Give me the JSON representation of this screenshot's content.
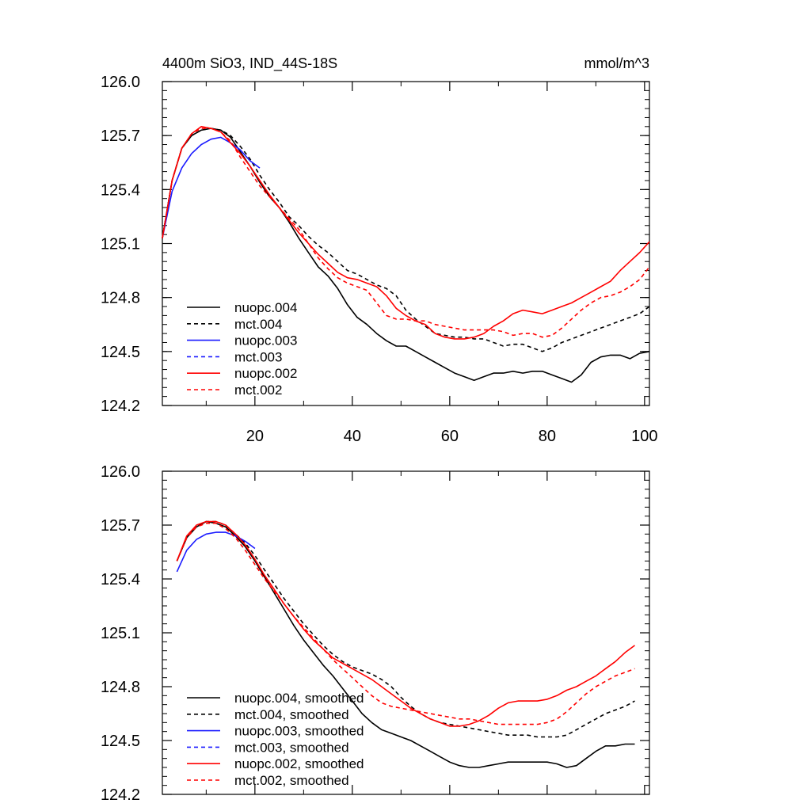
{
  "figure": {
    "title": "4400m SiO3, IND_44S-18S",
    "units": "mmol/m^3"
  },
  "chart_data": [
    {
      "type": "line",
      "panel": "top",
      "title": "4400m SiO3, IND_44S-18S",
      "units": "mmol/m^3",
      "xlabel": "",
      "ylabel": "",
      "xlim": [
        1,
        101
      ],
      "ylim": [
        124.2,
        126.0
      ],
      "xticks": [
        20,
        40,
        60,
        80,
        100
      ],
      "xtick_labels": [
        "20",
        "40",
        "60",
        "80",
        "100"
      ],
      "yticks": [
        124.2,
        124.5,
        124.8,
        125.1,
        125.4,
        125.7,
        126.0
      ],
      "ytick_labels": [
        "124.2",
        "124.5",
        "124.8",
        "125.1",
        "125.4",
        "125.7",
        "126.0"
      ],
      "legend_position": "bottom-left",
      "series": [
        {
          "name": "nuopc.004",
          "color": "#000000",
          "dash": "solid",
          "x": [
            1,
            3,
            5,
            7,
            9,
            11,
            13,
            15,
            17,
            19,
            21,
            23,
            25,
            27,
            29,
            31,
            33,
            35,
            37,
            39,
            41,
            43,
            45,
            47,
            49,
            51,
            53,
            55,
            57,
            59,
            61,
            63,
            65,
            67,
            69,
            71,
            73,
            75,
            77,
            79,
            81,
            83,
            85,
            87,
            89,
            91,
            93,
            95,
            97,
            99,
            101
          ],
          "y": [
            125.13,
            125.45,
            125.63,
            125.7,
            125.73,
            125.74,
            125.73,
            125.69,
            125.61,
            125.53,
            125.44,
            125.36,
            125.3,
            125.22,
            125.13,
            125.05,
            124.97,
            124.92,
            124.85,
            124.76,
            124.69,
            124.65,
            124.6,
            124.56,
            124.53,
            124.53,
            124.5,
            124.47,
            124.44,
            124.41,
            124.38,
            124.36,
            124.34,
            124.36,
            124.38,
            124.38,
            124.39,
            124.38,
            124.39,
            124.39,
            124.37,
            124.35,
            124.33,
            124.37,
            124.44,
            124.47,
            124.48,
            124.48,
            124.46,
            124.49,
            124.5
          ]
        },
        {
          "name": "mct.004",
          "color": "#000000",
          "dash": "dashed",
          "x": [
            1,
            3,
            5,
            7,
            9,
            11,
            13,
            15,
            17,
            19,
            21,
            23,
            25,
            27,
            29,
            31,
            33,
            35,
            37,
            39,
            41,
            43,
            45,
            47,
            49,
            51,
            53,
            55,
            57,
            59,
            61,
            63,
            65,
            67,
            69,
            71,
            73,
            75,
            77,
            79,
            81,
            83,
            85,
            87,
            89,
            91,
            93,
            95,
            97,
            99,
            101
          ],
          "y": [
            125.13,
            125.45,
            125.63,
            125.7,
            125.73,
            125.74,
            125.73,
            125.7,
            125.64,
            125.57,
            125.48,
            125.4,
            125.33,
            125.25,
            125.2,
            125.14,
            125.09,
            125.05,
            125.0,
            124.95,
            124.93,
            124.9,
            124.87,
            124.85,
            124.81,
            124.73,
            124.68,
            124.64,
            124.6,
            124.59,
            124.58,
            124.58,
            124.57,
            124.57,
            124.55,
            124.53,
            124.54,
            124.54,
            124.52,
            124.5,
            124.52,
            124.55,
            124.57,
            124.59,
            124.61,
            124.63,
            124.65,
            124.67,
            124.69,
            124.71,
            124.75
          ]
        },
        {
          "name": "nuopc.003",
          "color": "#1a1aff",
          "dash": "solid",
          "x": [
            1,
            3,
            5,
            7,
            9,
            11,
            13,
            15,
            17,
            19,
            21
          ],
          "y": [
            125.13,
            125.39,
            125.52,
            125.6,
            125.65,
            125.68,
            125.69,
            125.66,
            125.62,
            125.56,
            125.52
          ]
        },
        {
          "name": "mct.003",
          "color": "#1a1aff",
          "dash": "dashed",
          "x": [],
          "y": []
        },
        {
          "name": "nuopc.002",
          "color": "#ff0000",
          "dash": "solid",
          "x": [
            1,
            3,
            5,
            7,
            9,
            11,
            13,
            15,
            17,
            19,
            21,
            23,
            25,
            27,
            29,
            31,
            33,
            35,
            37,
            39,
            41,
            43,
            45,
            47,
            49,
            51,
            53,
            55,
            57,
            59,
            61,
            63,
            65,
            67,
            69,
            71,
            73,
            75,
            77,
            79,
            81,
            83,
            85,
            87,
            89,
            91,
            93,
            95,
            97,
            99,
            101
          ],
          "y": [
            125.13,
            125.45,
            125.63,
            125.71,
            125.75,
            125.74,
            125.72,
            125.66,
            125.6,
            125.53,
            125.45,
            125.37,
            125.3,
            125.23,
            125.16,
            125.1,
            125.04,
            124.99,
            124.94,
            124.91,
            124.9,
            124.88,
            124.86,
            124.81,
            124.74,
            124.7,
            124.67,
            124.65,
            124.6,
            124.58,
            124.57,
            124.57,
            124.58,
            124.6,
            124.64,
            124.67,
            124.71,
            124.73,
            124.72,
            124.71,
            124.73,
            124.75,
            124.77,
            124.8,
            124.83,
            124.86,
            124.89,
            124.95,
            125.0,
            125.05,
            125.11
          ]
        },
        {
          "name": "mct.002",
          "color": "#ff0000",
          "dash": "dashed",
          "x": [
            1,
            3,
            5,
            7,
            9,
            11,
            13,
            15,
            17,
            19,
            21,
            23,
            25,
            27,
            29,
            31,
            33,
            35,
            37,
            39,
            41,
            43,
            45,
            47,
            49,
            51,
            53,
            55,
            57,
            59,
            61,
            63,
            65,
            67,
            69,
            71,
            73,
            75,
            77,
            79,
            81,
            83,
            85,
            87,
            89,
            91,
            93,
            95,
            97,
            99,
            101
          ],
          "y": [
            125.13,
            125.45,
            125.63,
            125.71,
            125.74,
            125.74,
            125.72,
            125.67,
            125.58,
            125.5,
            125.42,
            125.36,
            125.3,
            125.24,
            125.18,
            125.1,
            125.02,
            124.96,
            124.91,
            124.88,
            124.86,
            124.84,
            124.77,
            124.7,
            124.68,
            124.68,
            124.67,
            124.67,
            124.65,
            124.64,
            124.63,
            124.62,
            124.62,
            124.62,
            124.62,
            124.61,
            124.59,
            124.6,
            124.6,
            124.58,
            124.59,
            124.63,
            124.68,
            124.73,
            124.77,
            124.8,
            124.81,
            124.83,
            124.86,
            124.9,
            124.97
          ]
        }
      ]
    },
    {
      "type": "line",
      "panel": "bottom",
      "title": "",
      "xlabel": "",
      "ylabel": "",
      "xlim": [
        1,
        101
      ],
      "ylim": [
        124.2,
        126.0
      ],
      "xticks": [
        20,
        40,
        60,
        80,
        100
      ],
      "xtick_labels": [],
      "yticks": [
        124.2,
        124.5,
        124.8,
        125.1,
        125.4,
        125.7,
        126.0
      ],
      "ytick_labels": [
        "124.2",
        "124.5",
        "124.8",
        "125.1",
        "125.4",
        "125.7",
        "126.0"
      ],
      "legend_position": "bottom-left",
      "series": [
        {
          "name": "nuopc.004, smoothed",
          "color": "#000000",
          "dash": "solid",
          "x": [
            4,
            6,
            8,
            10,
            12,
            14,
            16,
            18,
            20,
            22,
            24,
            26,
            28,
            30,
            32,
            34,
            36,
            38,
            40,
            42,
            44,
            46,
            48,
            50,
            52,
            54,
            56,
            58,
            60,
            62,
            64,
            66,
            68,
            70,
            72,
            74,
            76,
            78,
            80,
            82,
            84,
            86,
            88,
            90,
            92,
            94,
            96,
            98
          ],
          "y": [
            125.5,
            125.63,
            125.69,
            125.72,
            125.71,
            125.69,
            125.64,
            125.58,
            125.5,
            125.41,
            125.32,
            125.23,
            125.14,
            125.06,
            124.99,
            124.92,
            124.86,
            124.79,
            124.72,
            124.65,
            124.6,
            124.56,
            124.54,
            124.52,
            124.5,
            124.47,
            124.44,
            124.41,
            124.38,
            124.36,
            124.35,
            124.35,
            124.36,
            124.37,
            124.38,
            124.38,
            124.38,
            124.38,
            124.38,
            124.37,
            124.35,
            124.36,
            124.4,
            124.44,
            124.47,
            124.47,
            124.48,
            124.48
          ]
        },
        {
          "name": "mct.004, smoothed",
          "color": "#000000",
          "dash": "dashed",
          "x": [
            4,
            6,
            8,
            10,
            12,
            14,
            16,
            18,
            20,
            22,
            24,
            26,
            28,
            30,
            32,
            34,
            36,
            38,
            40,
            42,
            44,
            46,
            48,
            50,
            52,
            54,
            56,
            58,
            60,
            62,
            64,
            66,
            68,
            70,
            72,
            74,
            76,
            78,
            80,
            82,
            84,
            86,
            88,
            90,
            92,
            94,
            96,
            98
          ],
          "y": [
            125.5,
            125.63,
            125.69,
            125.72,
            125.72,
            125.7,
            125.65,
            125.6,
            125.53,
            125.45,
            125.37,
            125.29,
            125.22,
            125.15,
            125.09,
            125.03,
            124.98,
            124.94,
            124.91,
            124.89,
            124.87,
            124.84,
            124.8,
            124.74,
            124.69,
            124.65,
            124.62,
            124.6,
            124.59,
            124.58,
            124.57,
            124.56,
            124.55,
            124.54,
            124.53,
            124.53,
            124.53,
            124.52,
            124.52,
            124.52,
            124.53,
            124.56,
            124.59,
            124.62,
            124.65,
            124.67,
            124.69,
            124.72
          ]
        },
        {
          "name": "nuopc.003, smoothed",
          "color": "#1a1aff",
          "dash": "solid",
          "x": [
            4,
            6,
            8,
            10,
            12,
            14,
            16,
            18,
            20
          ],
          "y": [
            125.44,
            125.56,
            125.62,
            125.65,
            125.66,
            125.66,
            125.64,
            125.61,
            125.57
          ]
        },
        {
          "name": "mct.003, smoothed",
          "color": "#1a1aff",
          "dash": "dashed",
          "x": [],
          "y": []
        },
        {
          "name": "nuopc.002, smoothed",
          "color": "#ff0000",
          "dash": "solid",
          "x": [
            4,
            6,
            8,
            10,
            12,
            14,
            16,
            18,
            20,
            22,
            24,
            26,
            28,
            30,
            32,
            34,
            36,
            38,
            40,
            42,
            44,
            46,
            48,
            50,
            52,
            54,
            56,
            58,
            60,
            62,
            64,
            66,
            68,
            70,
            72,
            74,
            76,
            78,
            80,
            82,
            84,
            86,
            88,
            90,
            92,
            94,
            96,
            98
          ],
          "y": [
            125.5,
            125.64,
            125.7,
            125.72,
            125.72,
            125.7,
            125.65,
            125.59,
            125.51,
            125.42,
            125.34,
            125.26,
            125.19,
            125.12,
            125.06,
            125.01,
            124.96,
            124.93,
            124.9,
            124.87,
            124.84,
            124.8,
            124.76,
            124.72,
            124.68,
            124.65,
            124.62,
            124.6,
            124.58,
            124.58,
            124.59,
            124.61,
            124.64,
            124.68,
            124.71,
            124.72,
            124.72,
            124.72,
            124.73,
            124.75,
            124.78,
            124.8,
            124.83,
            124.86,
            124.9,
            124.94,
            124.99,
            125.03
          ]
        },
        {
          "name": "mct.002, smoothed",
          "color": "#ff0000",
          "dash": "dashed",
          "x": [
            4,
            6,
            8,
            10,
            12,
            14,
            16,
            18,
            20,
            22,
            24,
            26,
            28,
            30,
            32,
            34,
            36,
            38,
            40,
            42,
            44,
            46,
            48,
            50,
            52,
            54,
            56,
            58,
            60,
            62,
            64,
            66,
            68,
            70,
            72,
            74,
            76,
            78,
            80,
            82,
            84,
            86,
            88,
            90,
            92,
            94,
            96,
            98
          ],
          "y": [
            125.5,
            125.63,
            125.69,
            125.71,
            125.71,
            125.68,
            125.63,
            125.56,
            125.48,
            125.4,
            125.33,
            125.26,
            125.19,
            125.13,
            125.07,
            125.01,
            124.95,
            124.9,
            124.85,
            124.8,
            124.75,
            124.71,
            124.69,
            124.68,
            124.67,
            124.66,
            124.65,
            124.64,
            124.63,
            124.62,
            124.62,
            124.61,
            124.6,
            124.59,
            124.59,
            124.59,
            124.59,
            124.59,
            124.6,
            124.62,
            124.66,
            124.71,
            124.76,
            124.8,
            124.83,
            124.86,
            124.88,
            124.9
          ]
        }
      ]
    }
  ]
}
